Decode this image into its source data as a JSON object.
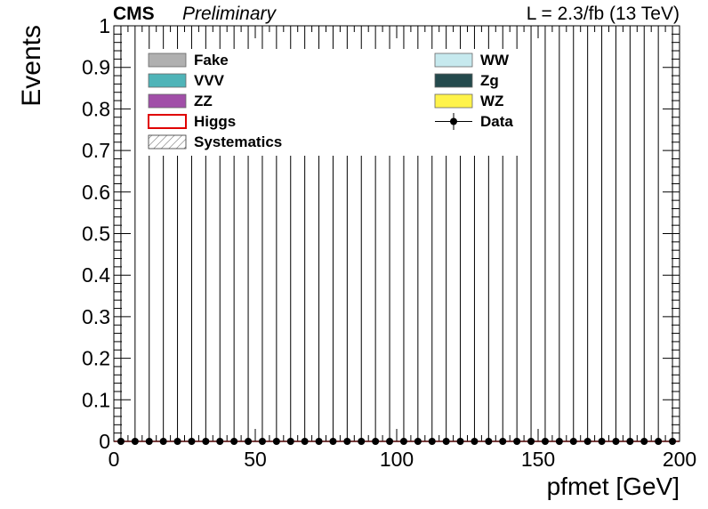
{
  "header": {
    "experiment": "CMS",
    "status": "Preliminary",
    "lumi": "L = 2.3/fb (13 TeV)"
  },
  "legend": {
    "entries": [
      {
        "label": "Fake",
        "style": "fill",
        "color": "#b0b0b0"
      },
      {
        "label": "WW",
        "style": "fill",
        "color": "#c6e9ee"
      },
      {
        "label": "VVV",
        "style": "fill",
        "color": "#4fb4b8"
      },
      {
        "label": "Zg",
        "style": "fill",
        "color": "#244a4d"
      },
      {
        "label": "ZZ",
        "style": "fill",
        "color": "#a14fa8"
      },
      {
        "label": "WZ",
        "style": "fill",
        "color": "#fff34a"
      },
      {
        "label": "Higgs",
        "style": "line-box",
        "color": "#e00000"
      },
      {
        "label": "Data",
        "style": "marker",
        "color": "#000000"
      },
      {
        "label": "Systematics",
        "style": "hatch",
        "color": "#555555"
      }
    ]
  },
  "chart_data": {
    "type": "histogram",
    "xlabel": "pfmet [GeV]",
    "ylabel": "Events",
    "xlim": [
      0,
      200
    ],
    "ylim": [
      0,
      1
    ],
    "xticks": [
      "0",
      "50",
      "100",
      "150",
      "200"
    ],
    "yticks": [
      "0",
      "0.1",
      "0.2",
      "0.3",
      "0.4",
      "0.5",
      "0.6",
      "0.7",
      "0.8",
      "0.9",
      "1"
    ],
    "bin_width": 5,
    "series": [
      {
        "name": "Data",
        "x": [
          2.5,
          7.5,
          12.5,
          17.5,
          22.5,
          27.5,
          32.5,
          37.5,
          42.5,
          47.5,
          52.5,
          57.5,
          62.5,
          67.5,
          72.5,
          77.5,
          82.5,
          87.5,
          92.5,
          97.5,
          102.5,
          107.5,
          112.5,
          117.5,
          122.5,
          127.5,
          132.5,
          137.5,
          142.5,
          147.5,
          152.5,
          157.5,
          162.5,
          167.5,
          172.5,
          177.5,
          182.5,
          187.5,
          192.5,
          197.5
        ],
        "values": [
          0,
          0,
          0,
          0,
          0,
          0,
          0,
          0,
          0,
          0,
          0,
          0,
          0,
          0,
          0,
          0,
          0,
          0,
          0,
          0,
          0,
          0,
          0,
          0,
          0,
          0,
          0,
          0,
          0,
          0,
          0,
          0,
          0,
          0,
          0,
          0,
          0,
          0,
          0,
          0
        ],
        "err_high": [
          1.84,
          1.84,
          1.84,
          1.84,
          1.84,
          1.84,
          1.84,
          1.84,
          1.84,
          1.84,
          1.84,
          1.84,
          1.84,
          1.84,
          1.84,
          1.84,
          1.84,
          1.84,
          1.84,
          1.84,
          1.84,
          1.84,
          1.84,
          1.84,
          1.84,
          1.84,
          1.84,
          1.84,
          1.84,
          1.84,
          1.84,
          1.84,
          1.84,
          1.84,
          1.84,
          1.84,
          1.84,
          1.84,
          1.84,
          1.84
        ]
      },
      {
        "name": "Higgs",
        "values": [
          0,
          0,
          0,
          0,
          0,
          0,
          0,
          0,
          0,
          0,
          0,
          0,
          0,
          0,
          0,
          0,
          0,
          0,
          0,
          0,
          0,
          0,
          0,
          0,
          0,
          0,
          0,
          0,
          0,
          0,
          0,
          0,
          0,
          0,
          0,
          0,
          0,
          0,
          0,
          0
        ]
      }
    ]
  }
}
